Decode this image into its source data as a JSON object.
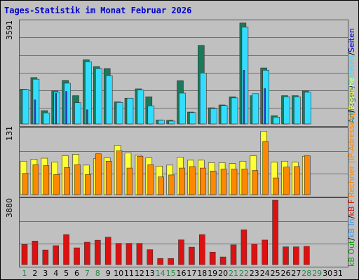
{
  "title": "Tages-Statistik im Monat Februar 2026",
  "colors": {
    "title": "#0000cc",
    "pages": "#1a7a5a",
    "files": "#33ddff",
    "requests": "#00aa88",
    "visits": "#ffff33",
    "hosts": "#ff8800",
    "kb_f": "#dd1111",
    "kb_in": "#3399ff",
    "kb_out": "#00aa00",
    "weekend": "#228844",
    "weekday": "#000000"
  },
  "chart_data": [
    {
      "type": "bar",
      "panel": "top",
      "ymax_label": "3591",
      "ylim": [
        0,
        3591
      ],
      "categories": [
        "1",
        "2",
        "3",
        "4",
        "5",
        "6",
        "7",
        "8",
        "9",
        "10",
        "11",
        "12",
        "13",
        "14",
        "15",
        "16",
        "17",
        "18",
        "19",
        "20",
        "21",
        "22",
        "23",
        "24",
        "25",
        "26",
        "27",
        "28",
        "29",
        "30",
        "31"
      ],
      "legend": [
        {
          "text": "Anfragen",
          "color": "#1a7a5a"
        },
        {
          "text": "/",
          "color": "#000000"
        },
        {
          "text": "Dateien",
          "color": "#33ddff"
        },
        {
          "text": "/",
          "color": "#000000"
        },
        {
          "text": "Seiten",
          "color": "#0000cc"
        }
      ],
      "series": [
        {
          "name": "Anfragen",
          "color": "#1a7a5a",
          "values": [
            1230,
            1640,
            470,
            1170,
            1540,
            1000,
            2270,
            2030,
            1960,
            780,
            910,
            1240,
            960,
            140,
            130,
            1530,
            420,
            2780,
            570,
            670,
            960,
            3570,
            1000,
            1980,
            290,
            1000,
            1000,
            1170,
            0,
            0,
            0
          ]
        },
        {
          "name": "Dateien",
          "color": "#33ddff",
          "values": [
            1220,
            1580,
            390,
            1130,
            1440,
            750,
            2200,
            1960,
            1710,
            760,
            910,
            1200,
            640,
            130,
            100,
            1090,
            400,
            1800,
            540,
            650,
            920,
            3420,
            1070,
            1900,
            240,
            960,
            960,
            1120,
            0,
            0,
            0
          ]
        },
        {
          "name": "Seiten",
          "color": "#2244dd",
          "values": [
            0,
            850,
            0,
            1080,
            1150,
            0,
            500,
            0,
            0,
            0,
            0,
            0,
            0,
            0,
            0,
            0,
            0,
            0,
            0,
            0,
            0,
            1900,
            0,
            1250,
            0,
            0,
            0,
            0,
            0,
            0,
            0
          ]
        }
      ]
    },
    {
      "type": "bar",
      "panel": "middle",
      "ymax_label": "131",
      "ylim": [
        0,
        131
      ],
      "categories": [
        "1",
        "2",
        "3",
        "4",
        "5",
        "6",
        "7",
        "8",
        "9",
        "10",
        "11",
        "12",
        "13",
        "14",
        "15",
        "16",
        "17",
        "18",
        "19",
        "20",
        "21",
        "22",
        "23",
        "24",
        "25",
        "26",
        "27",
        "28",
        "29",
        "30",
        "31"
      ],
      "legend": [
        {
          "text": "Rechner (IP-Adressen)",
          "color": "#ff8800"
        },
        {
          "text": "/",
          "color": "#000000"
        },
        {
          "text": "Besuche",
          "color": "#ffff33"
        }
      ],
      "series": [
        {
          "name": "Besuche",
          "color": "#ffff33",
          "values": [
            68,
            72,
            74,
            66,
            79,
            82,
            60,
            73,
            75,
            100,
            85,
            80,
            75,
            58,
            60,
            76,
            70,
            70,
            65,
            65,
            63,
            68,
            79,
            129,
            66,
            68,
            66,
            78,
            0,
            0,
            0
          ]
        },
        {
          "name": "Rechner (IP-Adressen)",
          "color": "#ff8800",
          "values": [
            43,
            61,
            59,
            41,
            55,
            61,
            41,
            83,
            68,
            89,
            54,
            78,
            61,
            36,
            40,
            54,
            57,
            54,
            48,
            52,
            52,
            52,
            49,
            108,
            34,
            56,
            57,
            79,
            0,
            0,
            0
          ]
        }
      ]
    },
    {
      "type": "bar",
      "panel": "bottom",
      "ymax_label": "3880",
      "ylim": [
        0,
        3880
      ],
      "categories": [
        "1",
        "2",
        "3",
        "4",
        "5",
        "6",
        "7",
        "8",
        "9",
        "10",
        "11",
        "12",
        "13",
        "14",
        "15",
        "16",
        "17",
        "18",
        "19",
        "20",
        "21",
        "22",
        "23",
        "24",
        "25",
        "26",
        "27",
        "28",
        "29",
        "30",
        "31"
      ],
      "legend": [
        {
          "text": "kB Out",
          "color": "#00aa00"
        },
        {
          "text": "/",
          "color": "#000000"
        },
        {
          "text": "kB In",
          "color": "#3399ff"
        },
        {
          "text": "/",
          "color": "#000000"
        },
        {
          "text": "kB F",
          "color": "#dd1111"
        }
      ],
      "series": [
        {
          "name": "kB F",
          "color": "#dd1111",
          "values": [
            1210,
            1420,
            880,
            1140,
            1810,
            1010,
            1350,
            1470,
            1650,
            1280,
            1280,
            1280,
            900,
            370,
            370,
            1490,
            1050,
            1810,
            750,
            460,
            1190,
            2100,
            1230,
            1480,
            3880,
            1070,
            1070,
            1100,
            0,
            0,
            0
          ]
        }
      ]
    }
  ],
  "x_labels": [
    "1",
    "2",
    "3",
    "4",
    "5",
    "6",
    "7",
    "8",
    "9",
    "10",
    "11",
    "12",
    "13",
    "14",
    "15",
    "16",
    "17",
    "18",
    "19",
    "20",
    "21",
    "22",
    "23",
    "24",
    "25",
    "26",
    "27",
    "28",
    "29",
    "30",
    "31"
  ],
  "weekend_days": [
    1,
    7,
    8,
    14,
    15,
    21,
    22,
    28,
    29
  ]
}
